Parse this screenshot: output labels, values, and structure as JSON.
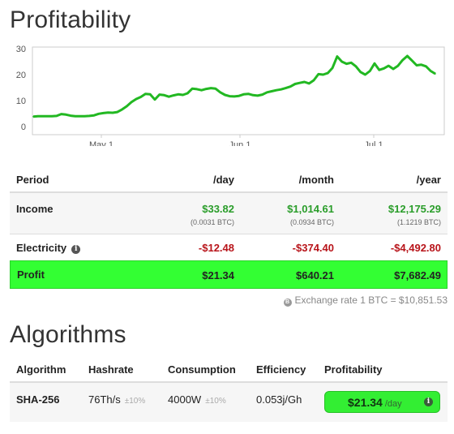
{
  "profitability": {
    "title": "Profitability",
    "chart_data": {
      "type": "line",
      "y_ticks": [
        "30",
        "20",
        "10",
        "0"
      ],
      "ylim": [
        0,
        30
      ],
      "x_ticks": [
        "May 1",
        "Jun 1",
        "Jul 1"
      ],
      "grid": false,
      "color": "#22b822",
      "values": [
        3.8,
        4.0,
        4.0,
        4.0,
        4.0,
        4.1,
        4.8,
        4.6,
        4.2,
        4.0,
        4.0,
        4.0,
        4.1,
        4.3,
        4.9,
        5.2,
        5.4,
        5.3,
        5.6,
        6.6,
        7.8,
        9.4,
        10.6,
        11.4,
        12.6,
        12.4,
        10.4,
        12.3,
        12.1,
        11.5,
        12.0,
        12.4,
        12.2,
        12.8,
        14.6,
        14.4,
        14.0,
        14.5,
        14.8,
        14.6,
        13.2,
        12.2,
        11.7,
        11.6,
        11.8,
        12.4,
        12.6,
        12.1,
        11.9,
        12.3,
        13.2,
        13.6,
        14.0,
        14.3,
        14.8,
        15.4,
        16.4,
        16.8,
        17.2,
        16.6,
        17.8,
        20.2,
        20.0,
        20.6,
        22.6,
        27.0,
        25.0,
        24.2,
        24.6,
        23.2,
        21.0,
        20.0,
        21.4,
        24.3,
        21.8,
        22.4,
        23.4,
        22.2,
        23.4,
        25.6,
        27.2,
        25.4,
        23.6,
        23.8,
        23.2,
        21.4,
        20.3
      ]
    },
    "table": {
      "headers": [
        "Period",
        "/day",
        "/month",
        "/year"
      ],
      "rows": [
        {
          "label": "Income",
          "day": "$33.82",
          "month": "$1,014.61",
          "year": "$12,175.29",
          "day_btc": "(0.0031 BTC)",
          "month_btc": "(0.0934 BTC)",
          "year_btc": "(1.1219 BTC)"
        },
        {
          "label": "Electricity",
          "day": "-$12.48",
          "month": "-$374.40",
          "year": "-$4,492.80"
        },
        {
          "label": "Profit",
          "day": "$21.34",
          "month": "$640.21",
          "year": "$7,682.49"
        }
      ],
      "income_color": "#2a9d2a",
      "electricity_color": "#b8141a",
      "profit_bg": "#33ff33"
    },
    "exchange_rate": "Exchange rate 1 BTC = $10,851.53"
  },
  "algorithms": {
    "title": "Algorithms",
    "headers": [
      "Algorithm",
      "Hashrate",
      "Consumption",
      "Efficiency",
      "Profitability"
    ],
    "row": {
      "algorithm": "SHA-256",
      "hashrate": "76Th/s",
      "hashrate_tol": "±10%",
      "consumption": "4000W",
      "consumption_tol": "±10%",
      "efficiency": "0.053j/Gh",
      "profit_value": "$21.34",
      "profit_unit": "/day"
    }
  }
}
